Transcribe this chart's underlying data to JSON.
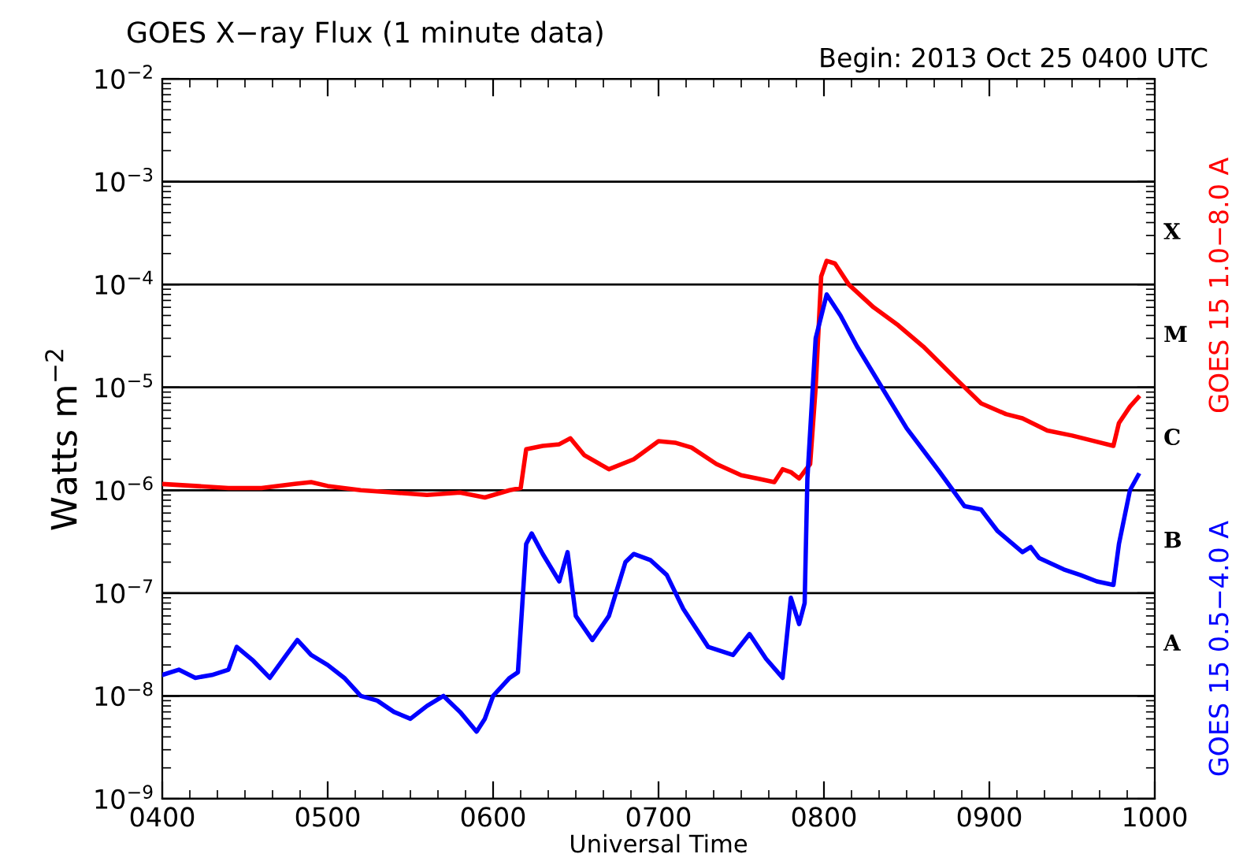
{
  "chart_data": {
    "type": "line",
    "title": "GOES X−ray Flux (1 minute data)",
    "subtitle": "Begin: 2013 Oct 25 0400 UTC",
    "xlabel": "Universal Time",
    "ylabel": "Watts m$^{−2}$",
    "log": "y",
    "grid": "y",
    "legend": false,
    "marker": "none",
    "line_style": "solid",
    "xlim": [
      "2013-10-25T04:00",
      "2013-10-25T10:00"
    ],
    "xticks": [
      {
        "value": "2013-10-25T04:00",
        "label": "0400"
      },
      {
        "value": "2013-10-25T05:00",
        "label": "0500"
      },
      {
        "value": "2013-10-25T06:00",
        "label": "0600"
      },
      {
        "value": "2013-10-25T07:00",
        "label": "0700"
      },
      {
        "value": "2013-10-25T08:00",
        "label": "0800"
      },
      {
        "value": "2013-10-25T09:00",
        "label": "0900"
      },
      {
        "value": "2013-10-25T10:00",
        "label": "1000"
      }
    ],
    "ylim": [
      1e-09,
      0.01
    ],
    "yticks": [
      {
        "value": 1e-09,
        "label": "10$^{−9}$"
      },
      {
        "value": 1e-08,
        "label": "10$^{−8}$"
      },
      {
        "value": 1e-07,
        "label": "10$^{−7}$"
      },
      {
        "value": 1e-06,
        "label": "10$^{−6}$"
      },
      {
        "value": 1e-05,
        "label": "10$^{−5}$"
      },
      {
        "value": 0.0001,
        "label": "10$^{−4}$"
      },
      {
        "value": 0.001,
        "label": "10$^{−3}$"
      },
      {
        "value": 0.01,
        "label": "10$^{−2}$"
      }
    ],
    "annotations": [
      "X",
      "M",
      "C",
      "B",
      "A"
    ],
    "series": [
      {
        "name": "GOES 15 1.0−8.0 A",
        "color": "#ff0000",
        "x": [
          "2013-10-25T04:00",
          "2013-10-25T04:12",
          "2013-10-25T04:24",
          "2013-10-25T04:36",
          "2013-10-25T04:48",
          "2013-10-25T04:54",
          "2013-10-25T05:00",
          "2013-10-25T05:12",
          "2013-10-25T05:24",
          "2013-10-25T05:36",
          "2013-10-25T05:48",
          "2013-10-25T05:57",
          "2013-10-25T06:06",
          "2013-10-25T06:10",
          "2013-10-25T06:12",
          "2013-10-25T06:18",
          "2013-10-25T06:24",
          "2013-10-25T06:28",
          "2013-10-25T06:33",
          "2013-10-25T06:42",
          "2013-10-25T06:51",
          "2013-10-25T07:00",
          "2013-10-25T07:06",
          "2013-10-25T07:12",
          "2013-10-25T07:21",
          "2013-10-25T07:30",
          "2013-10-25T07:36",
          "2013-10-25T07:42",
          "2013-10-25T07:45",
          "2013-10-25T07:48",
          "2013-10-25T07:51",
          "2013-10-25T07:55",
          "2013-10-25T07:57",
          "2013-10-25T07:59",
          "2013-10-25T08:01",
          "2013-10-25T08:04",
          "2013-10-25T08:09",
          "2013-10-25T08:18",
          "2013-10-25T08:27",
          "2013-10-25T08:36",
          "2013-10-25T08:48",
          "2013-10-25T08:57",
          "2013-10-25T09:06",
          "2013-10-25T09:12",
          "2013-10-25T09:21",
          "2013-10-25T09:30",
          "2013-10-25T09:36",
          "2013-10-25T09:45",
          "2013-10-25T09:47",
          "2013-10-25T09:51",
          "2013-10-25T09:54"
        ],
        "values": [
          1.15e-06,
          1.1e-06,
          1.05e-06,
          1.05e-06,
          1.15e-06,
          1.2e-06,
          1.1e-06,
          1e-06,
          9.5e-07,
          9e-07,
          9.5e-07,
          8.5e-07,
          1e-06,
          1.05e-06,
          2.5e-06,
          2.7e-06,
          2.8e-06,
          3.2e-06,
          2.2e-06,
          1.6e-06,
          2e-06,
          3e-06,
          2.9e-06,
          2.6e-06,
          1.8e-06,
          1.4e-06,
          1.3e-06,
          1.2e-06,
          1.6e-06,
          1.5e-06,
          1.3e-06,
          1.8e-06,
          1e-05,
          0.00012,
          0.00017,
          0.00016,
          0.0001,
          6e-05,
          4e-05,
          2.5e-05,
          1.2e-05,
          7e-06,
          5.5e-06,
          5e-06,
          3.8e-06,
          3.4e-06,
          3.1e-06,
          2.7e-06,
          4.5e-06,
          6.5e-06,
          8e-06
        ]
      },
      {
        "name": "GOES 15 0.5−4.0 A",
        "color": "#0000ff",
        "x": [
          "2013-10-25T04:00",
          "2013-10-25T04:06",
          "2013-10-25T04:12",
          "2013-10-25T04:18",
          "2013-10-25T04:24",
          "2013-10-25T04:27",
          "2013-10-25T04:33",
          "2013-10-25T04:39",
          "2013-10-25T04:45",
          "2013-10-25T04:49",
          "2013-10-25T04:54",
          "2013-10-25T05:00",
          "2013-10-25T05:06",
          "2013-10-25T05:12",
          "2013-10-25T05:18",
          "2013-10-25T05:24",
          "2013-10-25T05:30",
          "2013-10-25T05:36",
          "2013-10-25T05:42",
          "2013-10-25T05:48",
          "2013-10-25T05:54",
          "2013-10-25T05:57",
          "2013-10-25T06:00",
          "2013-10-25T06:06",
          "2013-10-25T06:09",
          "2013-10-25T06:12",
          "2013-10-25T06:14",
          "2013-10-25T06:18",
          "2013-10-25T06:24",
          "2013-10-25T06:27",
          "2013-10-25T06:30",
          "2013-10-25T06:36",
          "2013-10-25T06:42",
          "2013-10-25T06:48",
          "2013-10-25T06:51",
          "2013-10-25T06:57",
          "2013-10-25T07:03",
          "2013-10-25T07:09",
          "2013-10-25T07:18",
          "2013-10-25T07:27",
          "2013-10-25T07:33",
          "2013-10-25T07:39",
          "2013-10-25T07:45",
          "2013-10-25T07:48",
          "2013-10-25T07:51",
          "2013-10-25T07:53",
          "2013-10-25T07:54",
          "2013-10-25T07:57",
          "2013-10-25T08:01",
          "2013-10-25T08:06",
          "2013-10-25T08:12",
          "2013-10-25T08:21",
          "2013-10-25T08:30",
          "2013-10-25T08:42",
          "2013-10-25T08:51",
          "2013-10-25T08:57",
          "2013-10-25T09:03",
          "2013-10-25T09:12",
          "2013-10-25T09:15",
          "2013-10-25T09:18",
          "2013-10-25T09:27",
          "2013-10-25T09:33",
          "2013-10-25T09:39",
          "2013-10-25T09:45",
          "2013-10-25T09:47",
          "2013-10-25T09:51",
          "2013-10-25T09:54"
        ],
        "values": [
          1.6e-08,
          1.8e-08,
          1.5e-08,
          1.6e-08,
          1.8e-08,
          3e-08,
          2.2e-08,
          1.5e-08,
          2.5e-08,
          3.5e-08,
          2.5e-08,
          2e-08,
          1.5e-08,
          1e-08,
          9e-09,
          7e-09,
          6e-09,
          8e-09,
          1e-08,
          7e-09,
          4.5e-09,
          6e-09,
          1e-08,
          1.5e-08,
          1.7e-08,
          3e-07,
          3.8e-07,
          2.4e-07,
          1.3e-07,
          2.5e-07,
          6e-08,
          3.5e-08,
          6e-08,
          2e-07,
          2.4e-07,
          2.1e-07,
          1.5e-07,
          7e-08,
          3e-08,
          2.5e-08,
          4e-08,
          2.3e-08,
          1.5e-08,
          9e-08,
          5e-08,
          8e-08,
          1.3e-06,
          3e-05,
          8e-05,
          5e-05,
          2.5e-05,
          1e-05,
          4e-06,
          1.5e-06,
          7e-07,
          6.5e-07,
          4e-07,
          2.5e-07,
          2.8e-07,
          2.2e-07,
          1.7e-07,
          1.5e-07,
          1.3e-07,
          1.2e-07,
          3e-07,
          1e-06,
          1.4e-06
        ]
      }
    ]
  }
}
